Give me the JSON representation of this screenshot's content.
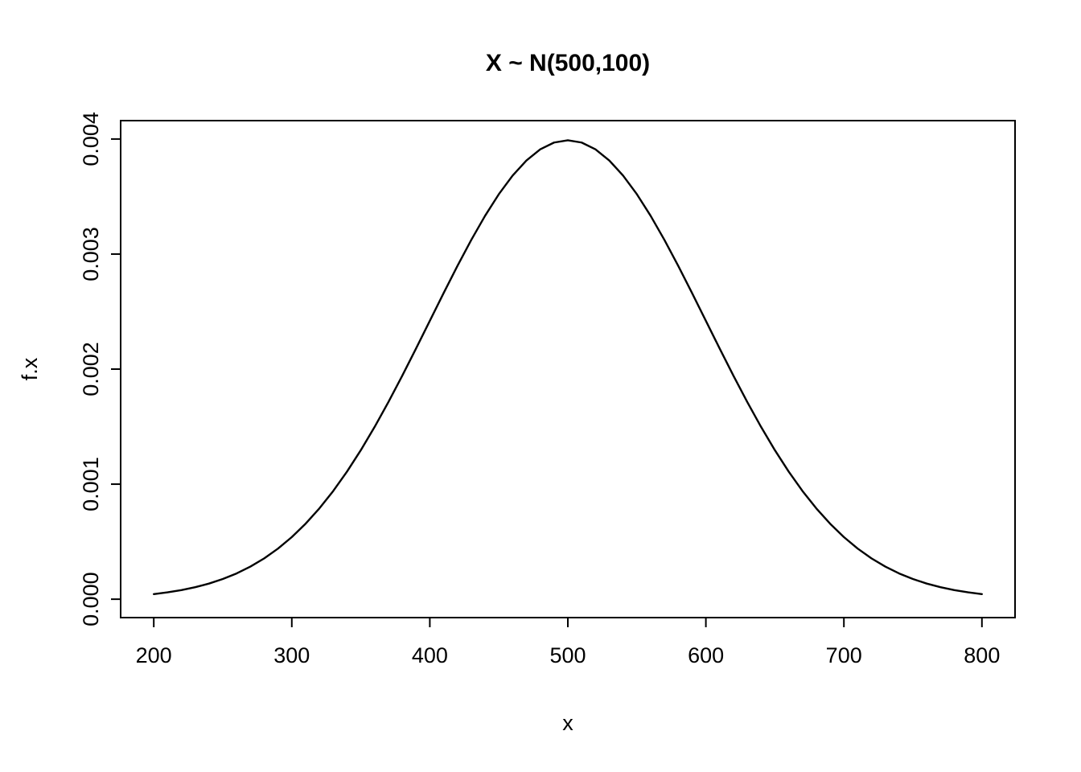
{
  "figure": {
    "background_color": "#ffffff",
    "line_color": "#000000",
    "text_color": "#000000"
  },
  "chart_data": {
    "type": "line",
    "title": "X ~ N(500,100)",
    "xlabel": "x",
    "ylabel": "f.x",
    "xlim": [
      200,
      800
    ],
    "ylim": [
      0,
      0.004
    ],
    "axis_expansion": 0.04,
    "grid": false,
    "legend": false,
    "x_ticks": {
      "values": [
        200,
        300,
        400,
        500,
        600,
        700,
        800
      ],
      "labels": [
        "200",
        "300",
        "400",
        "500",
        "600",
        "700",
        "800"
      ]
    },
    "y_ticks": {
      "values": [
        0.0,
        0.001,
        0.002,
        0.003,
        0.004
      ],
      "labels": [
        "0.000",
        "0.001",
        "0.002",
        "0.003",
        "0.004"
      ]
    },
    "distribution": {
      "name": "normal",
      "mean": 500,
      "sd": 100,
      "peak_density": 0.0039894
    },
    "series": [
      {
        "name": "f.x",
        "color": "#000000",
        "x": [
          200,
          210,
          220,
          230,
          240,
          250,
          260,
          270,
          280,
          290,
          300,
          310,
          320,
          330,
          340,
          350,
          360,
          370,
          380,
          390,
          400,
          410,
          420,
          430,
          440,
          450,
          460,
          470,
          480,
          490,
          500,
          510,
          520,
          530,
          540,
          550,
          560,
          570,
          580,
          590,
          600,
          610,
          620,
          630,
          640,
          650,
          660,
          670,
          680,
          690,
          700,
          710,
          720,
          730,
          740,
          750,
          760,
          770,
          780,
          790,
          800
        ],
        "y": [
          4.43e-05,
          5.95e-05,
          7.92e-05,
          0.0001042,
          0.0001358,
          0.0001753,
          0.0002239,
          0.0002833,
          0.0003547,
          0.0004398,
          0.0005399,
          0.0006562,
          0.0007895,
          0.0009405,
          0.0011092,
          0.0012952,
          0.0014973,
          0.0017137,
          0.0019419,
          0.0021785,
          0.0024197,
          0.0026609,
          0.0028969,
          0.0031225,
          0.0033322,
          0.0035207,
          0.0036827,
          0.0038139,
          0.0039104,
          0.0039695,
          0.0039894,
          0.0039695,
          0.0039104,
          0.0038139,
          0.0036827,
          0.0035207,
          0.0033322,
          0.0031225,
          0.0028969,
          0.0026609,
          0.0024197,
          0.0021785,
          0.0019419,
          0.0017137,
          0.0014973,
          0.0012952,
          0.0011092,
          0.0009405,
          0.0007895,
          0.0006562,
          0.0005399,
          0.0004398,
          0.0003547,
          0.0002833,
          0.0002239,
          0.0001753,
          0.0001358,
          0.0001042,
          7.92e-05,
          5.95e-05,
          4.43e-05
        ]
      }
    ]
  }
}
